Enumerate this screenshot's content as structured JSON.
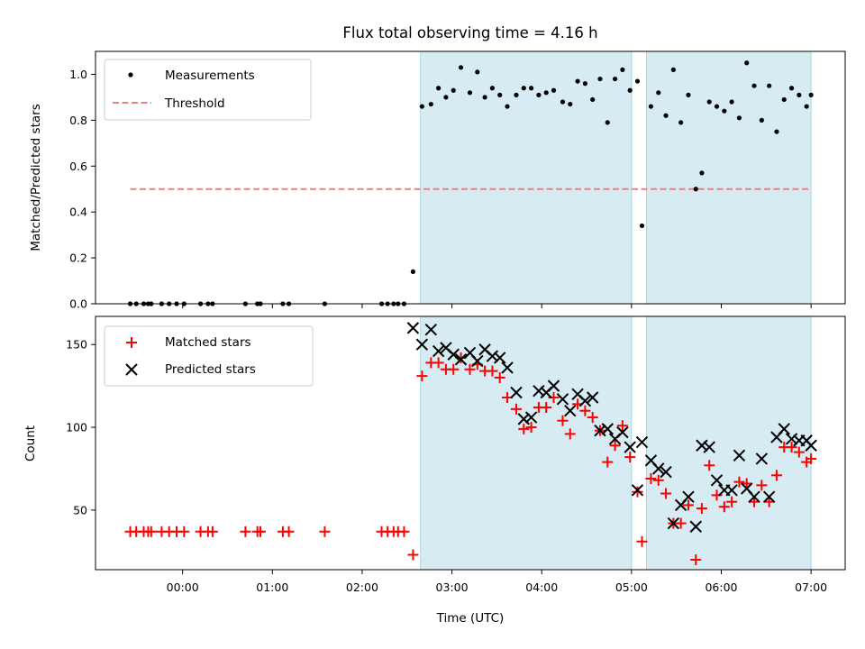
{
  "chart_data": [
    {
      "type": "scatter",
      "title": "Flux total observing time = 4.16 h",
      "xlabel": "",
      "ylabel": "Matched/Predicted stars",
      "xlim_hours": [
        -0.97,
        7.38
      ],
      "ylim": [
        0,
        1.1
      ],
      "y_ticks": [
        "0.0",
        "0.2",
        "0.4",
        "0.6",
        "0.8",
        "1.0"
      ],
      "grid": false,
      "legend_location": "upper left",
      "shaded_intervals": [
        [
          "02:39",
          "05:00"
        ],
        [
          "05:10",
          "07:00"
        ]
      ],
      "threshold": {
        "name": "Threshold",
        "value": 0.5,
        "x_range": [
          "23:25",
          "07:00"
        ],
        "color": "#f08080",
        "style": "dashed"
      },
      "series": [
        {
          "name": "Measurements",
          "marker": "dot",
          "color": "#000000",
          "points": [
            [
              "23:25",
              0.0
            ],
            [
              "23:29",
              0.0
            ],
            [
              "23:34",
              0.0
            ],
            [
              "23:37",
              0.0
            ],
            [
              "23:39",
              0.0
            ],
            [
              "23:46",
              0.0
            ],
            [
              "23:51",
              0.0
            ],
            [
              "23:56",
              0.0
            ],
            [
              "00:01",
              0.0
            ],
            [
              "00:12",
              0.0
            ],
            [
              "00:17",
              0.0
            ],
            [
              "00:20",
              0.0
            ],
            [
              "00:42",
              0.0
            ],
            [
              "00:50",
              0.0
            ],
            [
              "00:52",
              0.0
            ],
            [
              "01:07",
              0.0
            ],
            [
              "01:11",
              0.0
            ],
            [
              "01:35",
              0.0
            ],
            [
              "02:13",
              0.0
            ],
            [
              "02:17",
              0.0
            ],
            [
              "02:21",
              0.0
            ],
            [
              "02:24",
              0.0
            ],
            [
              "02:28",
              0.0
            ],
            [
              "02:34",
              0.14
            ],
            [
              "02:40",
              0.86
            ],
            [
              "02:46",
              0.87
            ],
            [
              "02:51",
              0.94
            ],
            [
              "02:56",
              0.9
            ],
            [
              "03:01",
              0.93
            ],
            [
              "03:06",
              1.03
            ],
            [
              "03:12",
              0.92
            ],
            [
              "03:17",
              1.01
            ],
            [
              "03:22",
              0.9
            ],
            [
              "03:27",
              0.94
            ],
            [
              "03:32",
              0.91
            ],
            [
              "03:37",
              0.86
            ],
            [
              "03:43",
              0.91
            ],
            [
              "03:48",
              0.94
            ],
            [
              "03:53",
              0.94
            ],
            [
              "03:58",
              0.91
            ],
            [
              "04:03",
              0.92
            ],
            [
              "04:08",
              0.93
            ],
            [
              "04:14",
              0.88
            ],
            [
              "04:19",
              0.87
            ],
            [
              "04:24",
              0.97
            ],
            [
              "04:29",
              0.96
            ],
            [
              "04:34",
              0.89
            ],
            [
              "04:39",
              0.98
            ],
            [
              "04:44",
              0.79
            ],
            [
              "04:49",
              0.98
            ],
            [
              "04:54",
              1.02
            ],
            [
              "04:59",
              0.93
            ],
            [
              "05:04",
              0.97
            ],
            [
              "05:07",
              0.34
            ],
            [
              "05:13",
              0.86
            ],
            [
              "05:18",
              0.92
            ],
            [
              "05:23",
              0.82
            ],
            [
              "05:28",
              1.02
            ],
            [
              "05:33",
              0.79
            ],
            [
              "05:38",
              0.91
            ],
            [
              "05:43",
              0.5
            ],
            [
              "05:47",
              0.57
            ],
            [
              "05:52",
              0.88
            ],
            [
              "05:57",
              0.86
            ],
            [
              "06:02",
              0.84
            ],
            [
              "06:07",
              0.88
            ],
            [
              "06:12",
              0.81
            ],
            [
              "06:17",
              1.05
            ],
            [
              "06:22",
              0.95
            ],
            [
              "06:27",
              0.8
            ],
            [
              "06:32",
              0.95
            ],
            [
              "06:37",
              0.75
            ],
            [
              "06:42",
              0.89
            ],
            [
              "06:47",
              0.94
            ],
            [
              "06:52",
              0.91
            ],
            [
              "06:57",
              0.86
            ],
            [
              "07:00",
              0.91
            ]
          ]
        }
      ]
    },
    {
      "type": "scatter",
      "title": "",
      "xlabel": "Time (UTC)",
      "ylabel": "Count",
      "xlim_hours": [
        -0.97,
        7.38
      ],
      "ylim": [
        14,
        167
      ],
      "y_ticks": [
        "50",
        "100",
        "150"
      ],
      "x_ticks": [
        "00:00",
        "01:00",
        "02:00",
        "03:00",
        "04:00",
        "05:00",
        "06:00",
        "07:00"
      ],
      "grid": false,
      "legend_location": "upper left",
      "shaded_intervals": [
        [
          "02:39",
          "05:00"
        ],
        [
          "05:10",
          "07:00"
        ]
      ],
      "series": [
        {
          "name": "Matched stars",
          "marker": "plus",
          "color": "#ff0000",
          "points": [
            [
              "23:25",
              37
            ],
            [
              "23:29",
              37
            ],
            [
              "23:34",
              37
            ],
            [
              "23:37",
              37
            ],
            [
              "23:39",
              37
            ],
            [
              "23:46",
              37
            ],
            [
              "23:51",
              37
            ],
            [
              "23:56",
              37
            ],
            [
              "00:01",
              37
            ],
            [
              "00:12",
              37
            ],
            [
              "00:17",
              37
            ],
            [
              "00:20",
              37
            ],
            [
              "00:42",
              37
            ],
            [
              "00:50",
              37
            ],
            [
              "00:52",
              37
            ],
            [
              "01:07",
              37
            ],
            [
              "01:11",
              37
            ],
            [
              "01:35",
              37
            ],
            [
              "02:13",
              37
            ],
            [
              "02:17",
              37
            ],
            [
              "02:21",
              37
            ],
            [
              "02:24",
              37
            ],
            [
              "02:28",
              37
            ],
            [
              "02:34",
              23
            ],
            [
              "02:40",
              131
            ],
            [
              "02:46",
              139
            ],
            [
              "02:51",
              139
            ],
            [
              "02:56",
              135
            ],
            [
              "03:01",
              135
            ],
            [
              "03:06",
              142
            ],
            [
              "03:12",
              135
            ],
            [
              "03:17",
              138
            ],
            [
              "03:22",
              134
            ],
            [
              "03:27",
              134
            ],
            [
              "03:32",
              130
            ],
            [
              "03:37",
              118
            ],
            [
              "03:43",
              111
            ],
            [
              "03:48",
              99
            ],
            [
              "03:53",
              100
            ],
            [
              "03:58",
              112
            ],
            [
              "04:03",
              112
            ],
            [
              "04:08",
              118
            ],
            [
              "04:14",
              104
            ],
            [
              "04:19",
              96
            ],
            [
              "04:24",
              114
            ],
            [
              "04:29",
              110
            ],
            [
              "04:34",
              106
            ],
            [
              "04:39",
              98
            ],
            [
              "04:44",
              79
            ],
            [
              "04:49",
              89
            ],
            [
              "04:54",
              101
            ],
            [
              "04:59",
              82
            ],
            [
              "05:04",
              61
            ],
            [
              "05:07",
              31
            ],
            [
              "05:13",
              69
            ],
            [
              "05:18",
              68
            ],
            [
              "05:23",
              60
            ],
            [
              "05:28",
              42
            ],
            [
              "05:33",
              42
            ],
            [
              "05:38",
              53
            ],
            [
              "05:43",
              20
            ],
            [
              "05:47",
              51
            ],
            [
              "05:52",
              77
            ],
            [
              "05:57",
              59
            ],
            [
              "06:02",
              52
            ],
            [
              "06:07",
              55
            ],
            [
              "06:12",
              67
            ],
            [
              "06:17",
              66
            ],
            [
              "06:22",
              55
            ],
            [
              "06:27",
              65
            ],
            [
              "06:32",
              55
            ],
            [
              "06:37",
              71
            ],
            [
              "06:42",
              88
            ],
            [
              "06:47",
              88
            ],
            [
              "06:52",
              85
            ],
            [
              "06:57",
              79
            ],
            [
              "07:00",
              81
            ]
          ]
        },
        {
          "name": "Predicted stars",
          "marker": "x",
          "color": "#000000",
          "points": [
            [
              "02:34",
              160
            ],
            [
              "02:40",
              150
            ],
            [
              "02:46",
              159
            ],
            [
              "02:51",
              146
            ],
            [
              "02:56",
              148
            ],
            [
              "03:01",
              144
            ],
            [
              "03:06",
              141
            ],
            [
              "03:12",
              145
            ],
            [
              "03:17",
              140
            ],
            [
              "03:22",
              147
            ],
            [
              "03:27",
              143
            ],
            [
              "03:32",
              142
            ],
            [
              "03:37",
              136
            ],
            [
              "03:43",
              121
            ],
            [
              "03:48",
              105
            ],
            [
              "03:53",
              106
            ],
            [
              "03:58",
              122
            ],
            [
              "04:03",
              121
            ],
            [
              "04:08",
              125
            ],
            [
              "04:14",
              117
            ],
            [
              "04:19",
              110
            ],
            [
              "04:24",
              120
            ],
            [
              "04:29",
              116
            ],
            [
              "04:34",
              118
            ],
            [
              "04:39",
              98
            ],
            [
              "04:44",
              99
            ],
            [
              "04:49",
              93
            ],
            [
              "04:54",
              97
            ],
            [
              "04:59",
              88
            ],
            [
              "05:04",
              62
            ],
            [
              "05:07",
              91
            ],
            [
              "05:13",
              80
            ],
            [
              "05:18",
              75
            ],
            [
              "05:23",
              73
            ],
            [
              "05:28",
              42
            ],
            [
              "05:33",
              53
            ],
            [
              "05:38",
              58
            ],
            [
              "05:43",
              40
            ],
            [
              "05:47",
              89
            ],
            [
              "05:52",
              88
            ],
            [
              "05:57",
              68
            ],
            [
              "06:02",
              62
            ],
            [
              "06:07",
              62
            ],
            [
              "06:12",
              83
            ],
            [
              "06:17",
              63
            ],
            [
              "06:22",
              58
            ],
            [
              "06:27",
              81
            ],
            [
              "06:32",
              58
            ],
            [
              "06:37",
              94
            ],
            [
              "06:42",
              99
            ],
            [
              "06:47",
              93
            ],
            [
              "06:52",
              92
            ],
            [
              "06:57",
              92
            ],
            [
              "07:00",
              89
            ]
          ]
        }
      ]
    }
  ]
}
